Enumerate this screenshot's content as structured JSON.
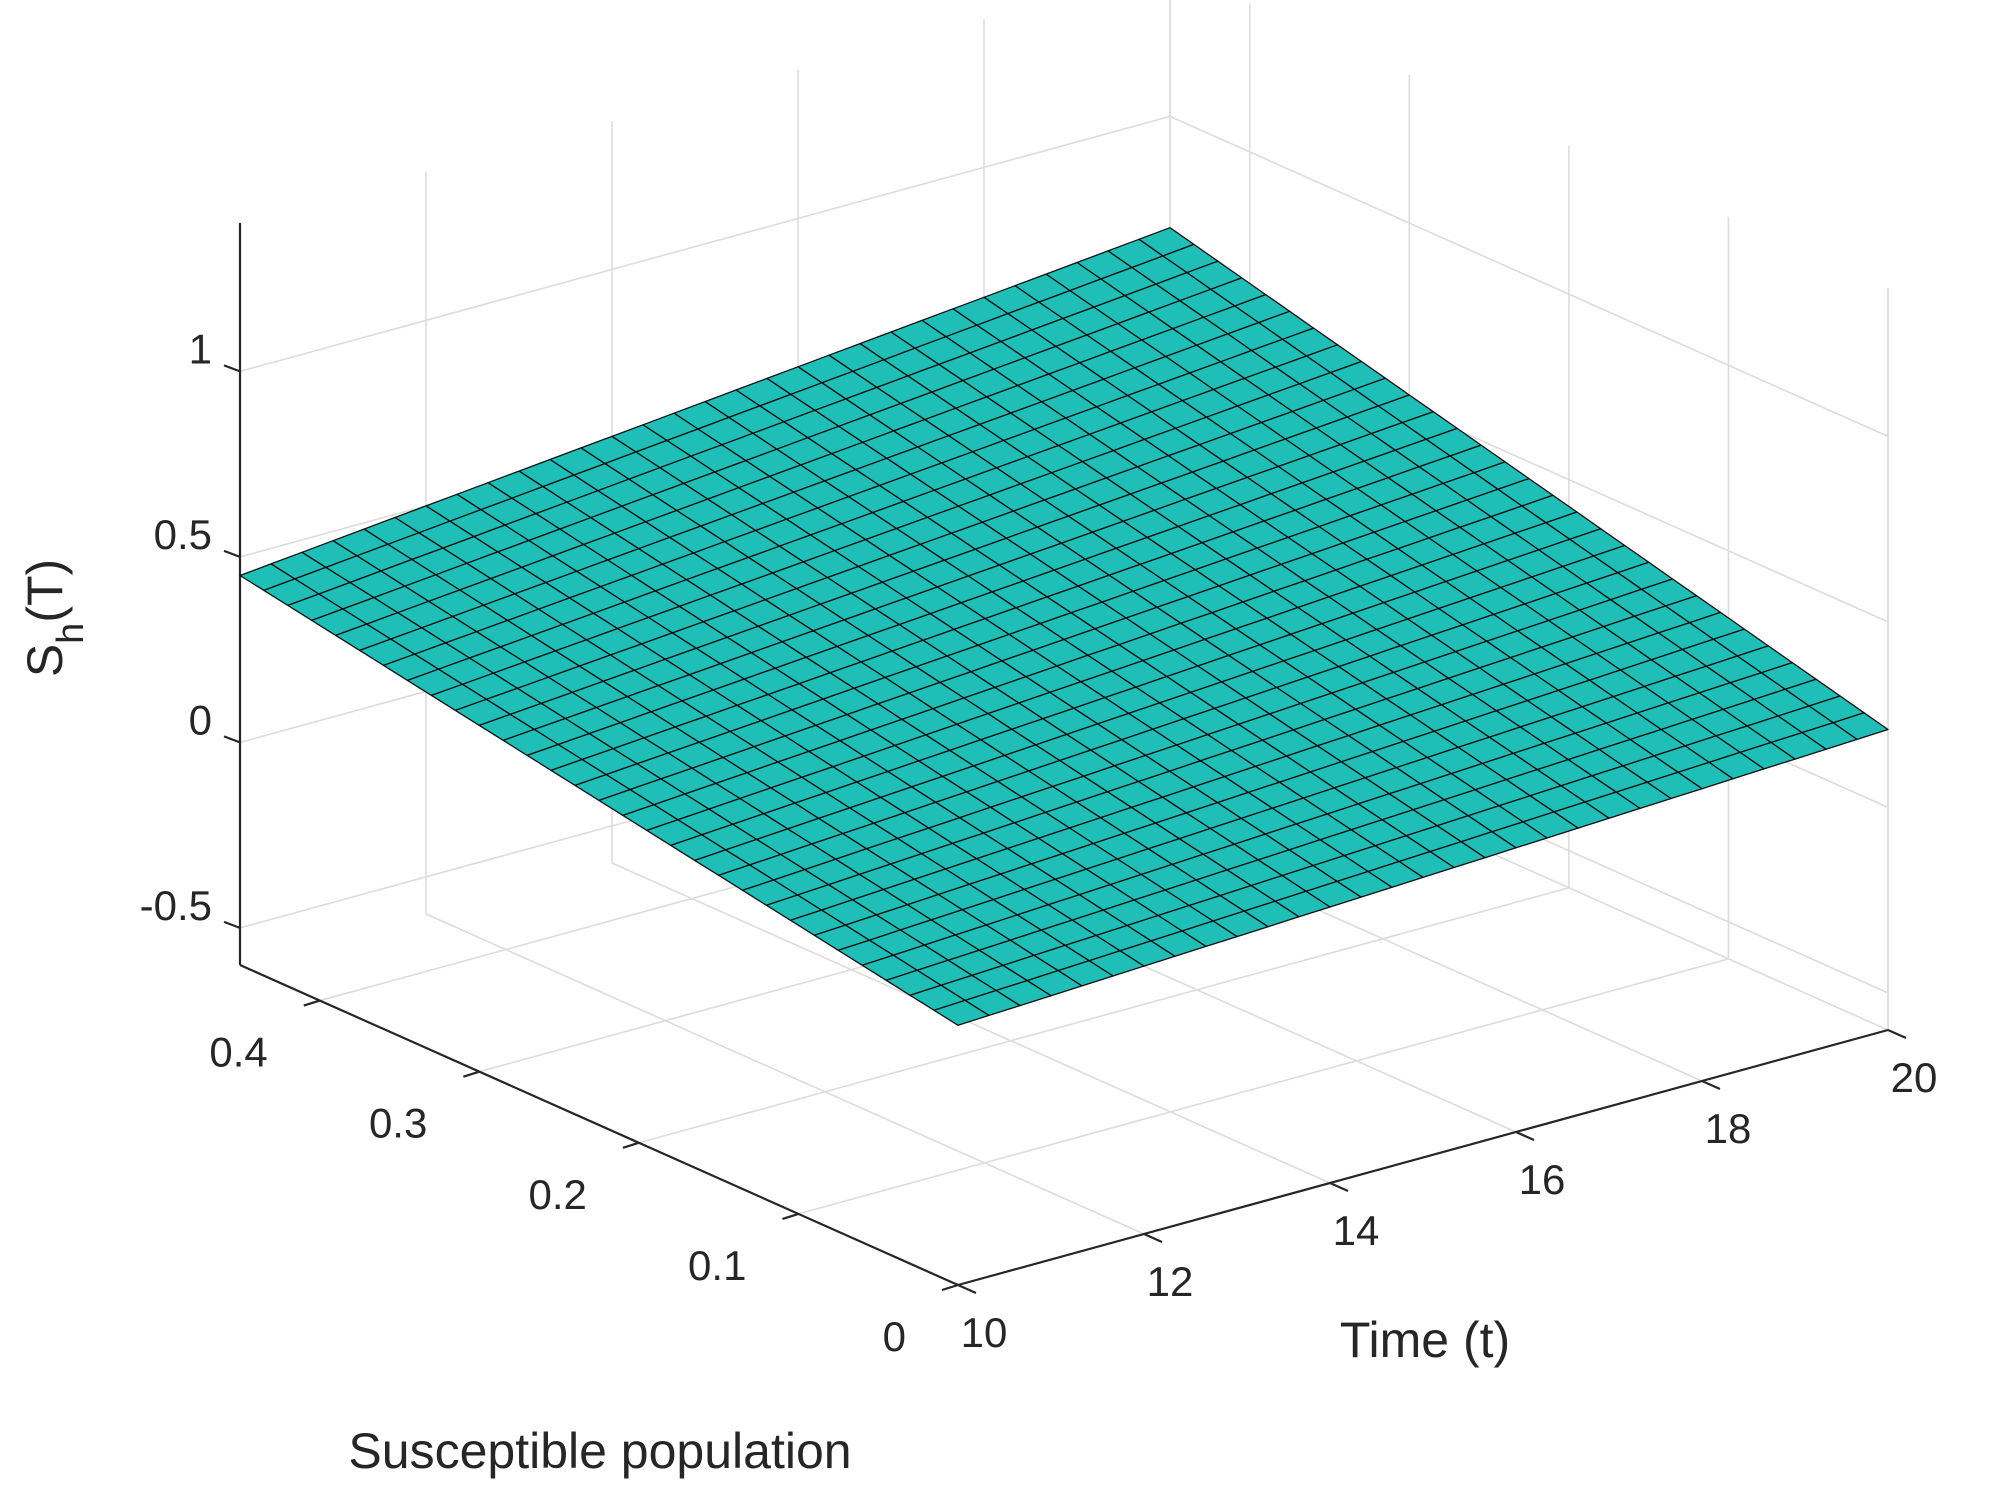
{
  "chart_data": {
    "type": "surface3d",
    "title": "",
    "xlabel": "Time (t)",
    "ylabel": "Susceptible population",
    "zlabel": {
      "main": "S",
      "sub": "h",
      "suffix": "(T)"
    },
    "x_ticks": [
      "10",
      "12",
      "14",
      "16",
      "18",
      "20"
    ],
    "y_ticks": [
      "0",
      "0.1",
      "0.2",
      "0.3",
      "0.4"
    ],
    "z_ticks": [
      "-0.5",
      "0",
      "0.5",
      "1"
    ],
    "xlim": [
      10,
      20
    ],
    "ylim": [
      0,
      0.45
    ],
    "zlim": [
      -0.6,
      1.4
    ],
    "surface": {
      "x_range": [
        10,
        20
      ],
      "y_range": [
        0,
        0.45
      ],
      "grid_cells": [
        30,
        30
      ],
      "z_corners": {
        "x10_y0": 0.1,
        "x20_y0": 0.21,
        "x10_y045": 0.45,
        "x20_y045": 0.7
      },
      "color": "#1fbfb8",
      "edge_color": "#111111"
    },
    "grid": true,
    "legend": "none"
  }
}
